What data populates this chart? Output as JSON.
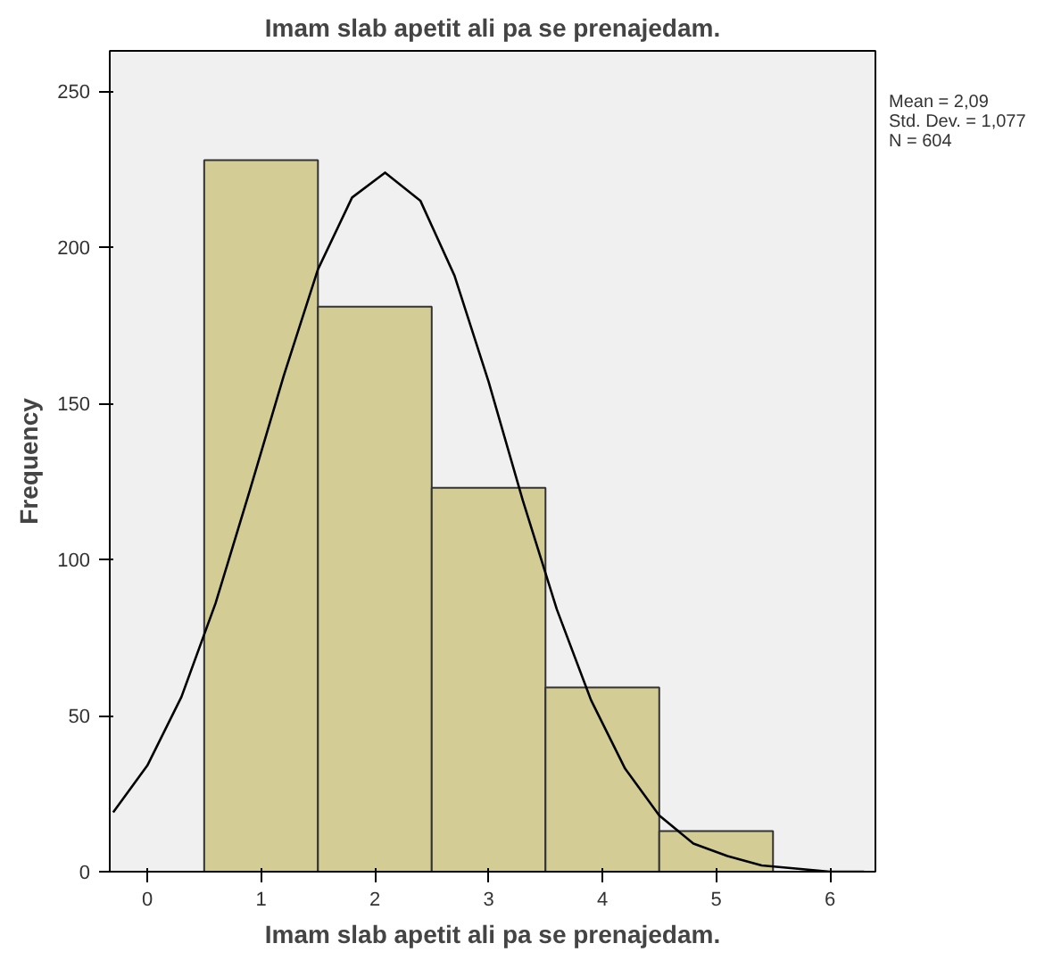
{
  "chart_data": {
    "type": "histogram",
    "title": "Imam slab apetit ali pa se prenajedam.",
    "xlabel": "Imam slab apetit ali pa se prenajedam.",
    "ylabel": "Frequency",
    "bins": [
      0.5,
      1.5,
      2.5,
      3.5,
      4.5,
      5.5
    ],
    "values": [
      228,
      181,
      123,
      59,
      13
    ],
    "color": "#d3cd95",
    "series": [
      {
        "type": "line",
        "color": "#000000",
        "x": [
          -0.3,
          0,
          0.3,
          0.6,
          0.9,
          1.2,
          1.5,
          1.8,
          2.09,
          2.4,
          2.7,
          3.0,
          3.3,
          3.6,
          3.9,
          4.2,
          4.5,
          4.8,
          5.1,
          5.4,
          5.7,
          6.0,
          6.3
        ],
        "values": [
          19,
          34,
          56,
          86,
          122,
          159,
          193,
          216,
          224,
          215,
          191,
          157,
          119,
          84,
          55,
          33,
          18,
          9,
          5,
          2,
          1,
          0,
          0
        ]
      }
    ],
    "xlim": [
      -0.33,
      6.4
    ],
    "ylim": [
      0,
      263
    ],
    "xticks": [
      0,
      1,
      2,
      3,
      4,
      5,
      6
    ],
    "yticks": [
      0,
      50,
      100,
      150,
      200,
      250
    ],
    "grid": false,
    "annotations": [
      "Mean = 2,09",
      "Std. Dev. = 1,077",
      "N = 604"
    ]
  }
}
